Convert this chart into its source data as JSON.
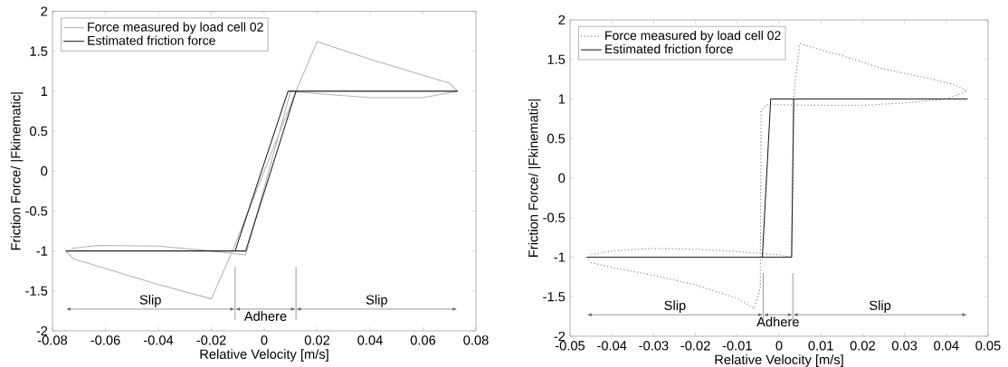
{
  "chart_data": [
    {
      "type": "line",
      "xlabel": "Relative Velocity [m/s]",
      "ylabel": "Friction Force/ |Fkinematic|",
      "xlim": [
        -0.08,
        0.08
      ],
      "ylim": [
        -2,
        2
      ],
      "xticks": [
        -0.08,
        -0.06,
        -0.04,
        -0.02,
        0,
        0.02,
        0.04,
        0.06,
        0.08
      ],
      "yticks": [
        -2,
        -1.5,
        -1,
        -0.5,
        0,
        0.5,
        1,
        1.5,
        2
      ],
      "legend": "top left",
      "grid": false,
      "marker": "none",
      "series": [
        {
          "name": "Force measured by load cell 02",
          "color": "#b4b4b4",
          "line_style": "solid",
          "x": [
            -0.075,
            -0.072,
            -0.06,
            -0.04,
            -0.02,
            -0.012,
            0.012,
            0.02,
            0.04,
            0.06,
            0.07,
            0.073,
            0.06,
            0.04,
            0.02,
            0.01,
            -0.007,
            -0.02,
            -0.04,
            -0.063,
            -0.073
          ],
          "values": [
            -1,
            -1.1,
            -1.22,
            -1.42,
            -1.6,
            -1.0,
            1.0,
            1.62,
            1.4,
            1.2,
            1.1,
            1.0,
            0.92,
            0.92,
            0.97,
            1.0,
            -1.05,
            -1.0,
            -0.94,
            -0.93,
            -0.97
          ]
        },
        {
          "name": "Estimated friction force",
          "color": "#202020",
          "line_style": "solid",
          "x": [
            -0.075,
            -0.007,
            0.012,
            0.073,
            0.009,
            -0.011,
            -0.07
          ],
          "values": [
            -1,
            -1,
            1,
            1,
            1,
            -1,
            -1
          ]
        }
      ],
      "ref_lines": [
        {
          "axis": "x",
          "value": -0.011
        },
        {
          "axis": "x",
          "value": 0.012
        }
      ],
      "annotations": [
        "Slip",
        "Adhere",
        "Slip"
      ]
    },
    {
      "type": "line",
      "xlabel": "Relative Velocity [m/s]",
      "ylabel": "Friction Force/ |Fkinematic|",
      "xlim": [
        -0.05,
        0.05
      ],
      "ylim": [
        -2,
        2
      ],
      "xticks": [
        -0.05,
        -0.04,
        -0.03,
        -0.02,
        -0.01,
        0,
        0.01,
        0.02,
        0.03,
        0.04,
        0.05
      ],
      "yticks": [
        -2,
        -1.5,
        -1,
        -0.5,
        0,
        0.5,
        1,
        1.5,
        2
      ],
      "legend": "top left",
      "grid": false,
      "marker": "none",
      "series": [
        {
          "name": "Force measured by load cell 02",
          "color": "#707070",
          "line_style": "dotted",
          "x": [
            -0.046,
            -0.045,
            -0.04,
            -0.03,
            -0.02,
            -0.01,
            -0.006,
            -0.0045,
            -0.0043,
            -0.003,
            0.01,
            0.02,
            0.03,
            0.04,
            0.045,
            0.042,
            0.035,
            0.025,
            0.015,
            0.01,
            0.005,
            0.004,
            0.0035,
            0.003,
            0,
            -0.01,
            -0.02,
            -0.03,
            -0.04,
            -0.045
          ],
          "values": [
            -1,
            -1.07,
            -1.13,
            -1.23,
            -1.35,
            -1.52,
            -1.65,
            -1.4,
            0.85,
            0.93,
            0.92,
            0.92,
            0.95,
            1.0,
            1.1,
            1.18,
            1.27,
            1.38,
            1.55,
            1.62,
            1.7,
            1.3,
            1.0,
            -1.0,
            -0.97,
            -0.93,
            -0.9,
            -0.89,
            -0.92,
            -0.97
          ]
        },
        {
          "name": "Estimated friction force",
          "color": "#202020",
          "line_style": "solid",
          "x": [
            -0.046,
            0.003,
            0.0035,
            0.045,
            -0.002,
            -0.004,
            -0.04
          ],
          "values": [
            -1,
            -1,
            1,
            1,
            1,
            -1,
            -1
          ]
        }
      ],
      "ref_lines": [
        {
          "axis": "x",
          "value": -0.0038
        },
        {
          "axis": "x",
          "value": 0.0033
        }
      ],
      "annotations": [
        "Slip",
        "Adhere",
        "Slip"
      ]
    }
  ]
}
